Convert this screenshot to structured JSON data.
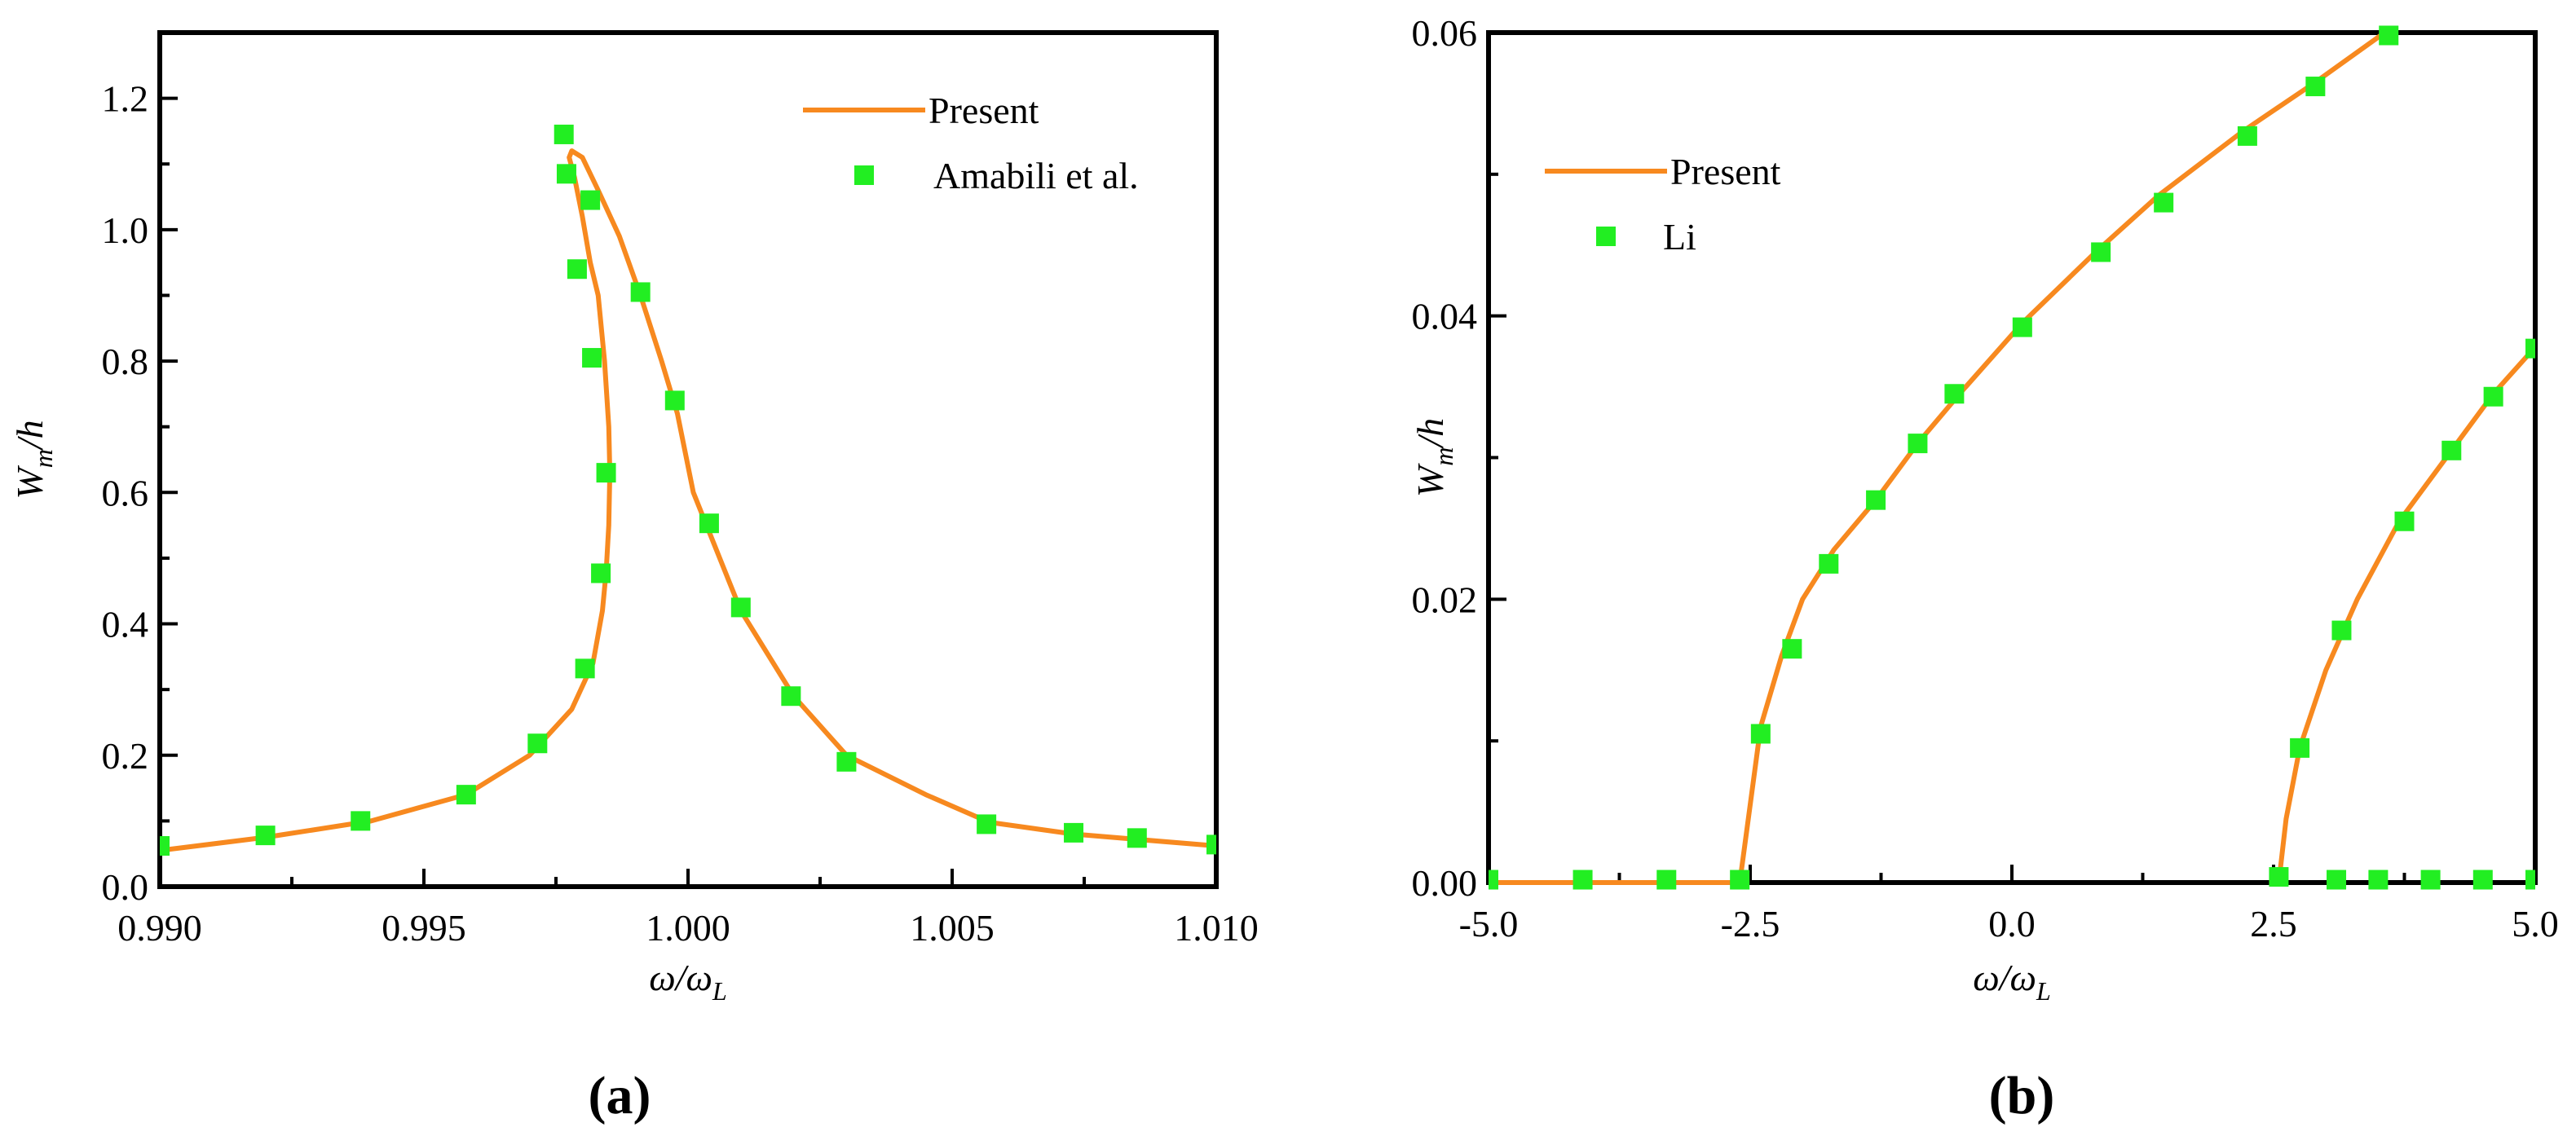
{
  "chart_data": [
    {
      "panel": "(a)",
      "type": "line",
      "xlabel_main": "ω/ω",
      "xlabel_sub": "L",
      "ylabel_main": "W",
      "ylabel_sub": "m",
      "ylabel_tail": "/h",
      "xlim": [
        0.99,
        1.01
      ],
      "ylim": [
        0.0,
        1.3
      ],
      "x_ticks": [
        0.99,
        0.995,
        1.0,
        1.005,
        1.01
      ],
      "x_tick_labels": [
        "0.990",
        "0.995",
        "1.000",
        "1.005",
        "1.010"
      ],
      "y_ticks": [
        0.0,
        0.2,
        0.4,
        0.6,
        0.8,
        1.0,
        1.2
      ],
      "y_tick_labels": [
        "0.0",
        "0.2",
        "0.4",
        "0.6",
        "0.8",
        "1.0",
        "1.2"
      ],
      "legend_position": "top-right",
      "series": [
        {
          "name": "Present",
          "kind": "line",
          "color": "#F7891F",
          "points": [
            [
              0.99,
              0.055
            ],
            [
              0.992,
              0.075
            ],
            [
              0.994,
              0.1
            ],
            [
              0.9958,
              0.14
            ],
            [
              0.997,
              0.2
            ],
            [
              0.9978,
              0.27
            ],
            [
              0.9982,
              0.34
            ],
            [
              0.99838,
              0.42
            ],
            [
              0.99845,
              0.48
            ],
            [
              0.9985,
              0.55
            ],
            [
              0.99852,
              0.63
            ],
            [
              0.9985,
              0.7
            ],
            [
              0.99842,
              0.8
            ],
            [
              0.9983,
              0.9
            ],
            [
              0.99815,
              0.95
            ],
            [
              0.998,
              1.02
            ],
            [
              0.99785,
              1.08
            ],
            [
              0.99775,
              1.11
            ],
            [
              0.9978,
              1.12
            ],
            [
              0.998,
              1.11
            ],
            [
              0.9983,
              1.06
            ],
            [
              0.9987,
              0.99
            ],
            [
              0.9991,
              0.9
            ],
            [
              0.9995,
              0.8
            ],
            [
              0.9998,
              0.72
            ],
            [
              1.0001,
              0.6
            ],
            [
              1.0005,
              0.52
            ],
            [
              1.001,
              0.42
            ],
            [
              1.002,
              0.29
            ],
            [
              1.003,
              0.2
            ],
            [
              1.0045,
              0.14
            ],
            [
              1.0057,
              0.098
            ],
            [
              1.0073,
              0.08
            ],
            [
              1.0085,
              0.072
            ],
            [
              1.01,
              0.062
            ]
          ]
        },
        {
          "name": "Amabili et al.",
          "kind": "scatter",
          "color": "#22EE22",
          "points": [
            [
              0.99,
              0.062
            ],
            [
              0.992,
              0.078
            ],
            [
              0.9938,
              0.1
            ],
            [
              0.9958,
              0.14
            ],
            [
              0.99715,
              0.218
            ],
            [
              0.99765,
              1.145
            ],
            [
              0.9977,
              1.085
            ],
            [
              0.9979,
              0.94
            ],
            [
              0.99805,
              0.332
            ],
            [
              0.99815,
              1.045
            ],
            [
              0.99818,
              0.805
            ],
            [
              0.99835,
              0.477
            ],
            [
              0.99845,
              0.63
            ],
            [
              0.9991,
              0.905
            ],
            [
              0.99975,
              0.74
            ],
            [
              1.0004,
              0.553
            ],
            [
              1.001,
              0.425
            ],
            [
              1.00195,
              0.29
            ],
            [
              1.003,
              0.19
            ],
            [
              1.00565,
              0.095
            ],
            [
              1.0073,
              0.082
            ],
            [
              1.0085,
              0.074
            ],
            [
              1.01,
              0.064
            ]
          ]
        }
      ]
    },
    {
      "panel": "(b)",
      "type": "line",
      "xlabel_main": "ω/ω",
      "xlabel_sub": "L",
      "ylabel_main": "W",
      "ylabel_sub": "m",
      "ylabel_tail": "/h",
      "xlim": [
        -5.0,
        5.0
      ],
      "ylim": [
        0.0,
        0.06
      ],
      "x_ticks": [
        -5.0,
        -2.5,
        0.0,
        2.5,
        5.0
      ],
      "x_tick_labels": [
        "-5.0",
        "-2.5",
        "0.0",
        "2.5",
        "5.0"
      ],
      "y_ticks": [
        0.0,
        0.02,
        0.04,
        0.06
      ],
      "y_tick_labels": [
        "0.00",
        "0.02",
        "0.04",
        "0.06"
      ],
      "legend_position": "top-left",
      "series": [
        {
          "name": "Present",
          "kind": "line",
          "color": "#F7891F",
          "segments": [
            [
              [
                -5.0,
                0.0
              ],
              [
                -4.5,
                0.0
              ],
              [
                -4.0,
                0.0
              ],
              [
                -3.5,
                0.0
              ],
              [
                -3.0,
                0.0
              ],
              [
                -2.6,
                0.0
              ],
              [
                -2.5,
                0.0055
              ],
              [
                -2.4,
                0.011
              ],
              [
                -2.2,
                0.016
              ],
              [
                -2.0,
                0.02
              ],
              [
                -1.7,
                0.0235
              ],
              [
                -1.3,
                0.027
              ],
              [
                -0.9,
                0.031
              ],
              [
                -0.5,
                0.0345
              ],
              [
                0.1,
                0.0395
              ],
              [
                0.8,
                0.0445
              ],
              [
                1.4,
                0.0485
              ],
              [
                2.2,
                0.053
              ],
              [
                2.9,
                0.0565
              ],
              [
                3.6,
                0.0602
              ]
            ],
            [
              [
                2.55,
                0.0
              ],
              [
                2.62,
                0.0045
              ],
              [
                2.75,
                0.0095
              ],
              [
                3.0,
                0.015
              ],
              [
                3.3,
                0.02
              ],
              [
                3.7,
                0.0255
              ],
              [
                4.2,
                0.0305
              ],
              [
                4.6,
                0.0345
              ],
              [
                5.0,
                0.0378
              ]
            ]
          ]
        },
        {
          "name": "Li",
          "kind": "scatter",
          "color": "#22EE22",
          "points": [
            [
              -5.0,
              0.0002
            ],
            [
              -4.1,
              0.0002
            ],
            [
              -3.3,
              0.0002
            ],
            [
              -2.6,
              0.0002
            ],
            [
              -2.4,
              0.0105
            ],
            [
              -2.1,
              0.0165
            ],
            [
              -1.75,
              0.0225
            ],
            [
              -1.3,
              0.027
            ],
            [
              -0.9,
              0.031
            ],
            [
              -0.55,
              0.0345
            ],
            [
              0.1,
              0.0392
            ],
            [
              0.85,
              0.0445
            ],
            [
              1.45,
              0.048
            ],
            [
              2.25,
              0.0527
            ],
            [
              2.9,
              0.0562
            ],
            [
              3.6,
              0.0598
            ],
            [
              2.55,
              0.0004
            ],
            [
              2.75,
              0.0095
            ],
            [
              3.15,
              0.0178
            ],
            [
              3.75,
              0.0255
            ],
            [
              4.2,
              0.0305
            ],
            [
              4.6,
              0.0343
            ],
            [
              5.0,
              0.0377
            ],
            [
              3.1,
              0.0002
            ],
            [
              3.5,
              0.0002
            ],
            [
              4.0,
              0.0002
            ],
            [
              4.5,
              0.0002
            ],
            [
              5.0,
              0.0002
            ]
          ]
        }
      ]
    }
  ]
}
